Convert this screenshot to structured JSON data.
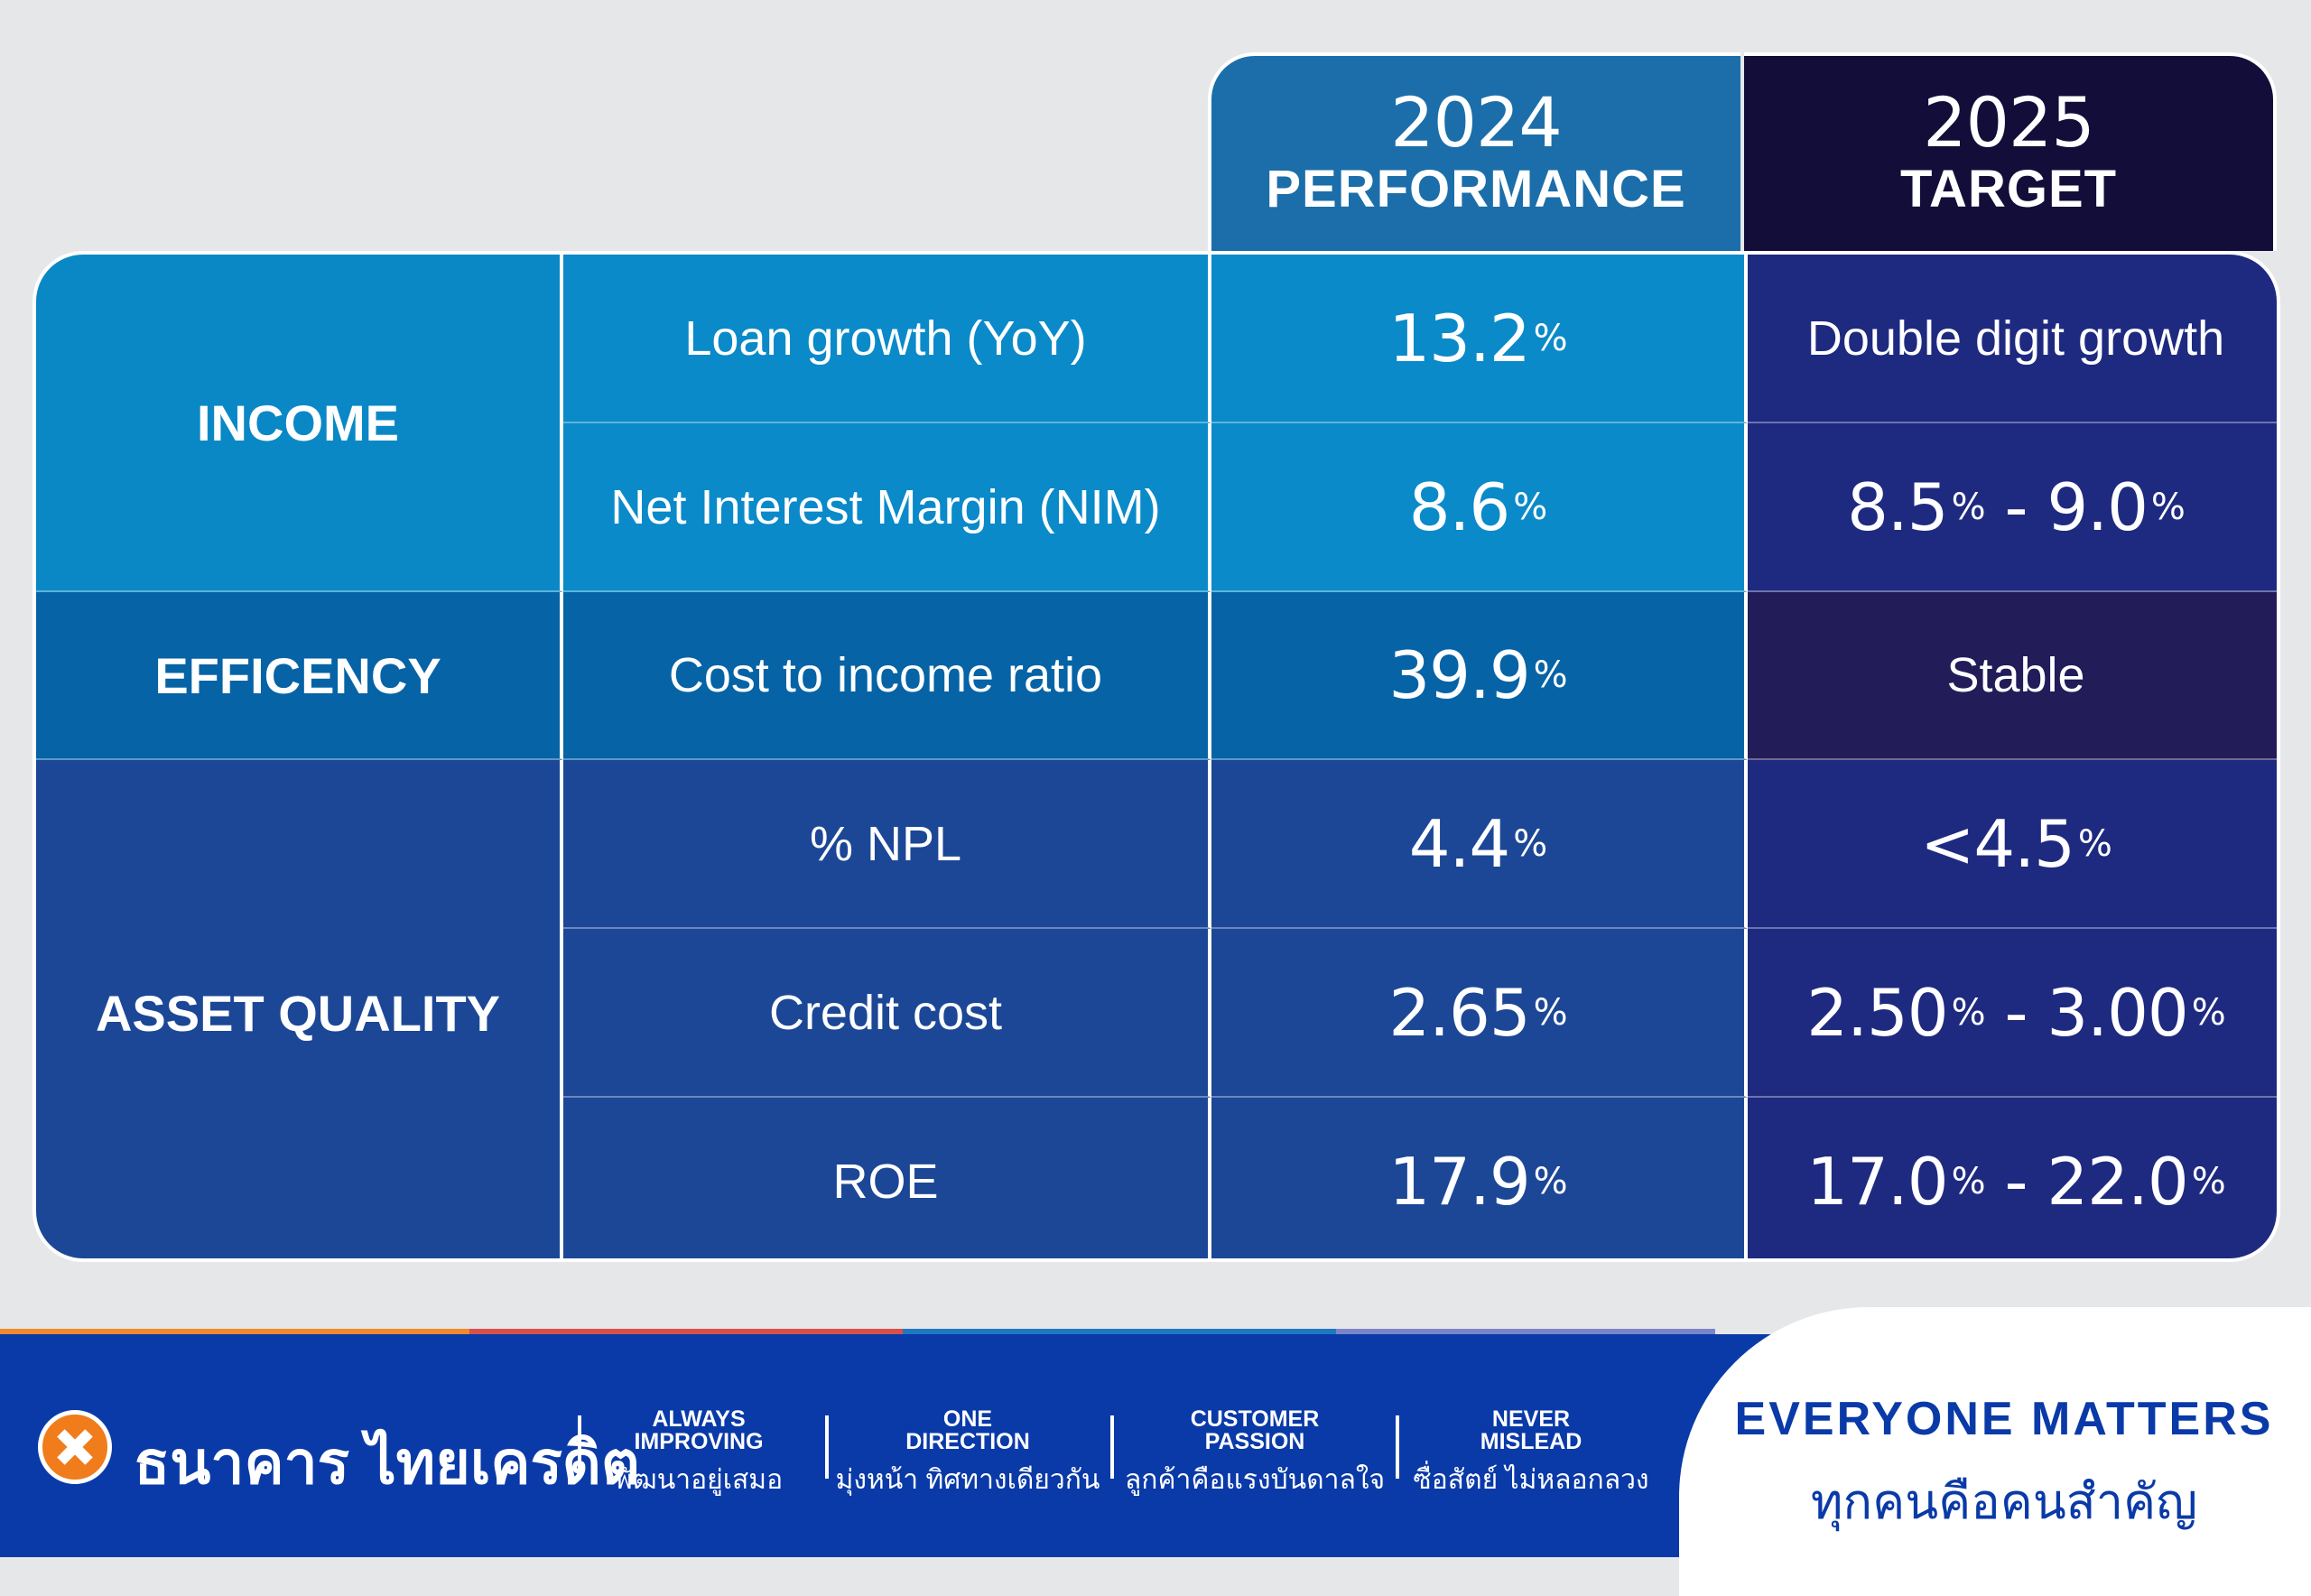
{
  "header": {
    "col2024": {
      "year": "2024",
      "label": "PERFORMANCE"
    },
    "col2025": {
      "year": "2025",
      "label": "TARGET"
    }
  },
  "categories": {
    "income": "INCOME",
    "efficiency": "EFFICENCY",
    "asset_quality": "ASSET QUALITY"
  },
  "rows": [
    {
      "metric": "Loan growth (YoY)",
      "v2024": "13.2",
      "u2024": "%",
      "t2025": "Double digit growth"
    },
    {
      "metric": "Net Interest Margin (NIM)",
      "v2024": "8.6",
      "u2024": "%",
      "t2025_a": "8.5",
      "t2025_b": "9.0",
      "sep": " - ",
      "unit": "%"
    },
    {
      "metric": "Cost to income ratio",
      "v2024": "39.9",
      "u2024": "%",
      "t2025": "Stable"
    },
    {
      "metric": "% NPL",
      "v2024": "4.4",
      "u2024": "%",
      "t2025": "<4.5",
      "unit": "%"
    },
    {
      "metric": "Credit cost",
      "v2024": "2.65",
      "u2024": "%",
      "t2025_a": "2.50",
      "t2025_b": "3.00",
      "sep": " - ",
      "unit": "%"
    },
    {
      "metric": "ROE",
      "v2024": "17.9",
      "u2024": "%",
      "t2025_a": "17.0",
      "t2025_b": "22.0",
      "sep": " - ",
      "unit": "%"
    }
  ],
  "footer": {
    "brand": "ธนาคาร ไทยเครดิต",
    "values": [
      {
        "en1": "ALWAYS",
        "en2": "IMPROVING",
        "th": "พัฒนาอยู่เสมอ"
      },
      {
        "en1": "ONE",
        "en2": "DIRECTION",
        "th": "มุ่งหน้า ทิศทางเดียวกัน"
      },
      {
        "en1": "CUSTOMER",
        "en2": "PASSION",
        "th": "ลูกค้าคือแรงบันดาลใจ"
      },
      {
        "en1": "NEVER",
        "en2": "MISLEAD",
        "th": "ซื่อสัตย์ ไม่หลอกลวง"
      }
    ],
    "slogan_en": "EVERYONE MATTERS",
    "slogan_th": "ทุกคนคือคนสำคัญ"
  },
  "colors": {
    "income_cat": "#0a88c6",
    "income_row": "#0a8ac9",
    "efficiency": "#0563a6",
    "asset": "#1c4796",
    "target_dark": "#1e2a80",
    "target_stable": "#221c59",
    "header2024": "#1b6ea9",
    "header2025": "#130d3a",
    "footer": "#0a3aa8"
  }
}
